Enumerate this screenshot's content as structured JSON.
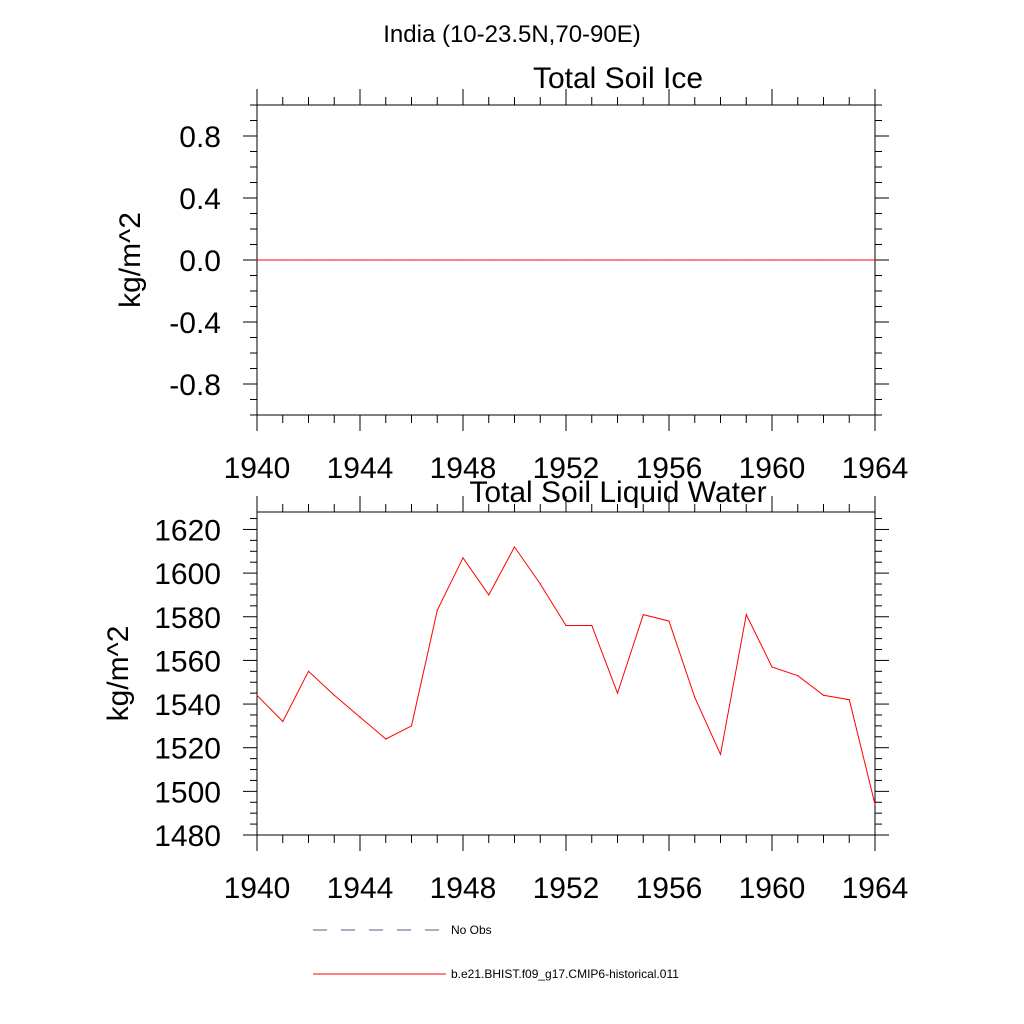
{
  "suptitle": "India (10-23.5N,70-90E)",
  "chart_data": [
    {
      "type": "line",
      "title": "Total Soil Ice",
      "xlabel": "",
      "ylabel": "kg/m^2",
      "xlim": [
        1940,
        1964
      ],
      "ylim": [
        -1.0,
        1.0
      ],
      "xticks": [
        "1940",
        "1944",
        "1948",
        "1952",
        "1956",
        "1960",
        "1964"
      ],
      "yticks": [
        "0.8",
        "0.4",
        "0.0",
        "-0.4",
        "-0.8"
      ],
      "grid": false,
      "series": [
        {
          "name": "b.e21.BHIST.f09_g17.CMIP6-historical.011",
          "color": "#ff0000",
          "x": [
            1940,
            1941,
            1942,
            1943,
            1944,
            1945,
            1946,
            1947,
            1948,
            1949,
            1950,
            1951,
            1952,
            1953,
            1954,
            1955,
            1956,
            1957,
            1958,
            1959,
            1960,
            1961,
            1962,
            1963,
            1964
          ],
          "values": [
            0,
            0,
            0,
            0,
            0,
            0,
            0,
            0,
            0,
            0,
            0,
            0,
            0,
            0,
            0,
            0,
            0,
            0,
            0,
            0,
            0,
            0,
            0,
            0,
            0
          ]
        }
      ]
    },
    {
      "type": "line",
      "title": "Total Soil Liquid Water",
      "xlabel": "",
      "ylabel": "kg/m^2",
      "xlim": [
        1940,
        1964
      ],
      "ylim": [
        1480,
        1628
      ],
      "xticks": [
        "1940",
        "1944",
        "1948",
        "1952",
        "1956",
        "1960",
        "1964"
      ],
      "yticks": [
        "1620",
        "1600",
        "1580",
        "1560",
        "1540",
        "1520",
        "1500",
        "1480"
      ],
      "grid": false,
      "series": [
        {
          "name": "b.e21.BHIST.f09_g17.CMIP6-historical.011",
          "color": "#ff0000",
          "x": [
            1940,
            1941,
            1942,
            1943,
            1944,
            1945,
            1946,
            1947,
            1948,
            1949,
            1950,
            1951,
            1952,
            1953,
            1954,
            1955,
            1956,
            1957,
            1958,
            1959,
            1960,
            1961,
            1962,
            1963,
            1964
          ],
          "values": [
            1544,
            1532,
            1555,
            1544,
            1534,
            1524,
            1530,
            1583,
            1607,
            1590,
            1612,
            1595,
            1576,
            1576,
            1545,
            1581,
            1578,
            1543,
            1517,
            1581,
            1557,
            1553,
            1544,
            1542,
            1494
          ]
        }
      ]
    }
  ],
  "legend": {
    "placement": "bottom",
    "items": [
      {
        "label": "No Obs",
        "color": "#5a5a8c",
        "style": "dashed"
      },
      {
        "label": "b.e21.BHIST.f09_g17.CMIP6-historical.011",
        "color": "#ff0000",
        "style": "solid"
      }
    ]
  }
}
